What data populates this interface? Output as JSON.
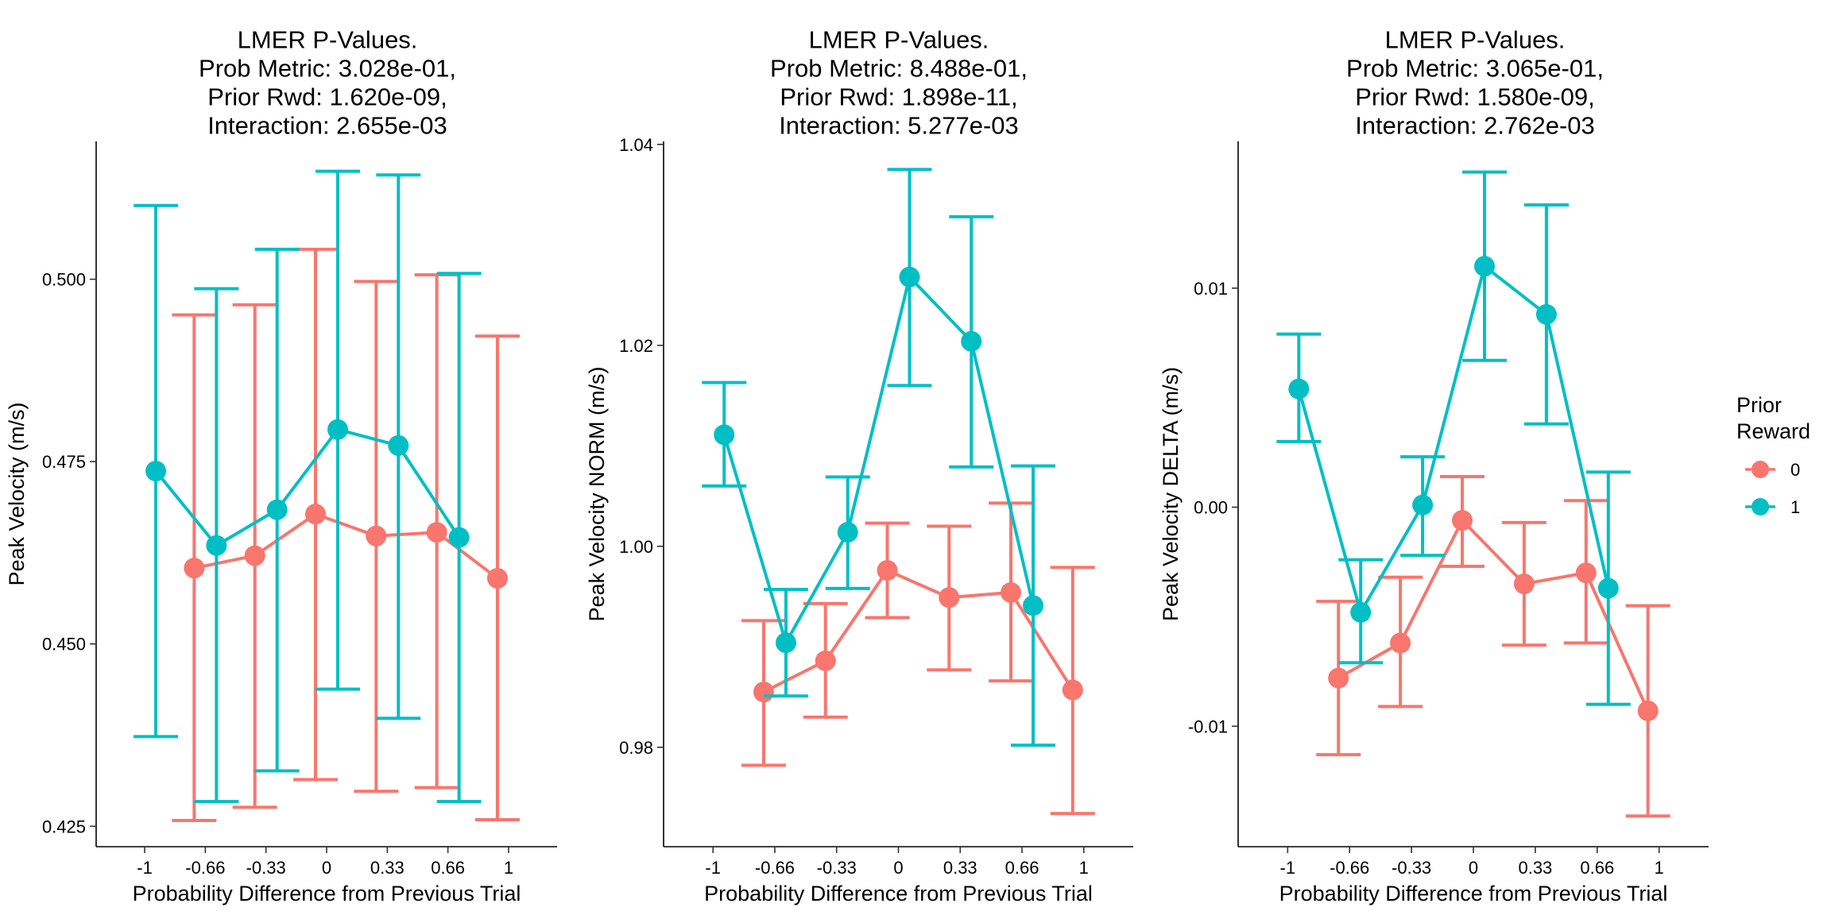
{
  "legend": {
    "title_line1": "Prior",
    "title_line2": "Reward",
    "items": [
      {
        "label": "0",
        "color": "#F8766D"
      },
      {
        "label": "1",
        "color": "#00BFC4"
      }
    ]
  },
  "chart_data": [
    {
      "type": "line",
      "title_lines": [
        "LMER P-Values.",
        "Prob Metric: 3.028e-01,",
        "Prior Rwd: 1.620e-09,",
        "Interaction: 2.655e-03"
      ],
      "xlabel": "Probability Difference from Previous Trial",
      "ylabel": "Peak Velocity (m/s)",
      "categories": [
        "-1",
        "-0.66",
        "-0.33",
        "0",
        "0.33",
        "0.66",
        "1"
      ],
      "ylim": [
        0.4222,
        0.5189
      ],
      "yticks": [
        0.425,
        0.45,
        0.475,
        0.5
      ],
      "ytick_labels": [
        "0.425",
        "0.450",
        "0.475",
        "0.500"
      ],
      "series": [
        {
          "name": "0",
          "color": "#F8766D",
          "points": [
            {
              "x": "-0.66",
              "y": 0.4604,
              "lo": 0.4258,
              "hi": 0.4951
            },
            {
              "x": "-0.33",
              "y": 0.4621,
              "lo": 0.4276,
              "hi": 0.4965
            },
            {
              "x": "0",
              "y": 0.4678,
              "lo": 0.4314,
              "hi": 0.5041
            },
            {
              "x": "0.33",
              "y": 0.4648,
              "lo": 0.4298,
              "hi": 0.4997
            },
            {
              "x": "0.66",
              "y": 0.4653,
              "lo": 0.4303,
              "hi": 0.5006
            },
            {
              "x": "1",
              "y": 0.459,
              "lo": 0.4259,
              "hi": 0.4922
            }
          ]
        },
        {
          "name": "1",
          "color": "#00BFC4",
          "points": [
            {
              "x": "-1",
              "y": 0.4737,
              "lo": 0.4373,
              "hi": 0.5101
            },
            {
              "x": "-0.66",
              "y": 0.4635,
              "lo": 0.4284,
              "hi": 0.4987
            },
            {
              "x": "-0.33",
              "y": 0.4684,
              "lo": 0.4326,
              "hi": 0.5041
            },
            {
              "x": "0",
              "y": 0.4794,
              "lo": 0.4438,
              "hi": 0.5148
            },
            {
              "x": "0.33",
              "y": 0.4772,
              "lo": 0.4398,
              "hi": 0.5143
            },
            {
              "x": "0.66",
              "y": 0.4646,
              "lo": 0.4284,
              "hi": 0.5008
            }
          ]
        }
      ]
    },
    {
      "type": "line",
      "title_lines": [
        "LMER P-Values.",
        "Prob Metric: 8.488e-01,",
        "Prior Rwd: 1.898e-11,",
        "Interaction: 5.277e-03"
      ],
      "xlabel": "Probability Difference from Previous Trial",
      "ylabel": "Peak Velocity NORM (m/s)",
      "categories": [
        "-1",
        "-0.66",
        "-0.33",
        "0",
        "0.33",
        "0.66",
        "1"
      ],
      "ylim": [
        0.9701,
        1.0403
      ],
      "yticks": [
        0.98,
        1.0,
        1.02,
        1.04
      ],
      "ytick_labels": [
        "0.98",
        "1.00",
        "1.02",
        "1.04"
      ],
      "series": [
        {
          "name": "0",
          "color": "#F8766D",
          "points": [
            {
              "x": "-0.66",
              "y": 0.9855,
              "lo": 0.9782,
              "hi": 0.9926
            },
            {
              "x": "-0.33",
              "y": 0.9886,
              "lo": 0.983,
              "hi": 0.9943
            },
            {
              "x": "0",
              "y": 0.9976,
              "lo": 0.9929,
              "hi": 1.0023
            },
            {
              "x": "0.33",
              "y": 0.9949,
              "lo": 0.9877,
              "hi": 1.002
            },
            {
              "x": "0.66",
              "y": 0.9954,
              "lo": 0.9866,
              "hi": 1.0043
            },
            {
              "x": "1",
              "y": 0.9857,
              "lo": 0.9734,
              "hi": 0.9979
            }
          ]
        },
        {
          "name": "1",
          "color": "#00BFC4",
          "points": [
            {
              "x": "-1",
              "y": 1.0111,
              "lo": 1.006,
              "hi": 1.0163
            },
            {
              "x": "-0.66",
              "y": 0.9904,
              "lo": 0.9851,
              "hi": 0.9957
            },
            {
              "x": "-0.33",
              "y": 1.0014,
              "lo": 0.9958,
              "hi": 1.0069
            },
            {
              "x": "0",
              "y": 1.0268,
              "lo": 1.016,
              "hi": 1.0375
            },
            {
              "x": "0.33",
              "y": 1.0204,
              "lo": 1.0079,
              "hi": 1.0328
            },
            {
              "x": "0.66",
              "y": 0.9941,
              "lo": 0.9802,
              "hi": 1.008
            }
          ]
        }
      ]
    },
    {
      "type": "line",
      "title_lines": [
        "LMER P-Values.",
        "Prob Metric: 3.065e-01,",
        "Prior Rwd: 1.580e-09,",
        "Interaction: 2.762e-03"
      ],
      "xlabel": "Probability Difference from Previous Trial",
      "ylabel": "Peak Velocity DELTA (m/s)",
      "categories": [
        "-1",
        "-0.66",
        "-0.33",
        "0",
        "0.33",
        "0.66",
        "1"
      ],
      "ylim": [
        -0.0155,
        0.0167
      ],
      "yticks": [
        -0.01,
        0.0,
        0.01
      ],
      "ytick_labels": [
        "-0.01",
        "0.00",
        "0.01"
      ],
      "series": [
        {
          "name": "0",
          "color": "#F8766D",
          "points": [
            {
              "x": "-0.66",
              "y": -0.0078,
              "lo": -0.0113,
              "hi": -0.0043
            },
            {
              "x": "-0.33",
              "y": -0.0062,
              "lo": -0.0091,
              "hi": -0.0032
            },
            {
              "x": "0",
              "y": -0.0006,
              "lo": -0.0027,
              "hi": 0.0014
            },
            {
              "x": "0.33",
              "y": -0.0035,
              "lo": -0.0063,
              "hi": -0.0007
            },
            {
              "x": "0.66",
              "y": -0.003,
              "lo": -0.0062,
              "hi": 0.0003
            },
            {
              "x": "1",
              "y": -0.0093,
              "lo": -0.0141,
              "hi": -0.0045
            }
          ]
        },
        {
          "name": "1",
          "color": "#00BFC4",
          "points": [
            {
              "x": "-1",
              "y": 0.0054,
              "lo": 0.003,
              "hi": 0.0079
            },
            {
              "x": "-0.66",
              "y": -0.0048,
              "lo": -0.0071,
              "hi": -0.0024
            },
            {
              "x": "-0.33",
              "y": 0.0001,
              "lo": -0.0022,
              "hi": 0.0023
            },
            {
              "x": "0",
              "y": 0.011,
              "lo": 0.0067,
              "hi": 0.0153
            },
            {
              "x": "0.33",
              "y": 0.0088,
              "lo": 0.0038,
              "hi": 0.0138
            },
            {
              "x": "0.66",
              "y": -0.0037,
              "lo": -0.009,
              "hi": 0.0016
            }
          ]
        }
      ]
    }
  ]
}
